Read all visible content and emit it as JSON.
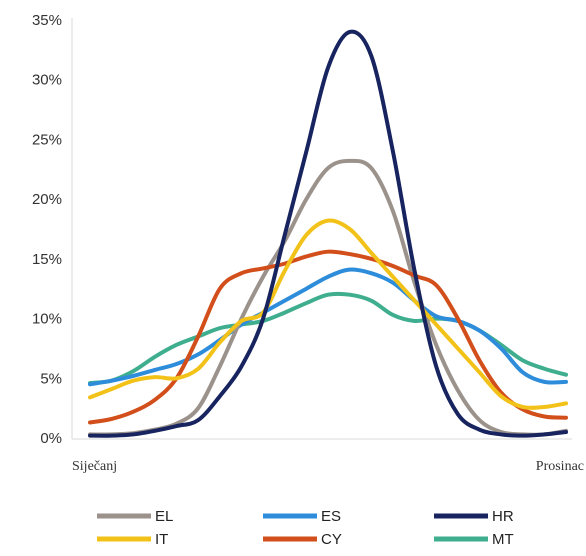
{
  "chart_data": {
    "type": "line",
    "title": "",
    "xlabel": "",
    "ylabel": "",
    "x_tick_labels": [
      "Siječanj",
      "Prosinac"
    ],
    "y_ticks": [
      "0%",
      "5%",
      "10%",
      "15%",
      "20%",
      "25%",
      "30%",
      "35%"
    ],
    "ylim": [
      0,
      35
    ],
    "grid": false,
    "legend_position": "bottom",
    "x": [
      0,
      0.5,
      1,
      1.5,
      2,
      2.5,
      3,
      3.5,
      4,
      4.5,
      5,
      5.5,
      6,
      6.5,
      7,
      7.5,
      8,
      8.5,
      9,
      9.5,
      10,
      10.5,
      11
    ],
    "series": [
      {
        "name": "EL",
        "color": "#9b928c",
        "values": [
          0.3,
          0.3,
          0.4,
          0.7,
          1.2,
          2.5,
          6.0,
          10.0,
          13.5,
          16.5,
          20.0,
          22.6,
          23.2,
          22.6,
          19.0,
          13.0,
          7.8,
          4.0,
          1.5,
          0.5,
          0.3,
          0.3,
          0.6
        ]
      },
      {
        "name": "ES",
        "color": "#2e8ddb",
        "values": [
          4.5,
          4.8,
          5.2,
          5.7,
          6.2,
          7.0,
          8.2,
          9.5,
          10.5,
          11.5,
          12.5,
          13.5,
          14.1,
          13.8,
          13.0,
          11.5,
          10.2,
          9.8,
          9.0,
          7.5,
          5.5,
          4.7,
          4.7
        ]
      },
      {
        "name": "HR",
        "color": "#17245f",
        "values": [
          0.2,
          0.2,
          0.3,
          0.6,
          1.0,
          1.5,
          3.5,
          6.0,
          10.0,
          17.0,
          24.0,
          31.0,
          34.0,
          32.0,
          24.0,
          14.0,
          6.0,
          2.0,
          0.7,
          0.3,
          0.2,
          0.3,
          0.5
        ]
      },
      {
        "name": "IT",
        "color": "#f2c219",
        "values": [
          3.4,
          4.1,
          4.8,
          5.1,
          5.0,
          5.8,
          8.0,
          9.8,
          10.5,
          14.0,
          17.0,
          18.2,
          17.5,
          15.5,
          13.5,
          11.5,
          9.5,
          7.5,
          5.5,
          3.5,
          2.6,
          2.6,
          2.9
        ]
      },
      {
        "name": "CY",
        "color": "#d24e1a",
        "values": [
          1.3,
          1.6,
          2.2,
          3.2,
          5.0,
          8.5,
          12.5,
          13.8,
          14.2,
          14.6,
          15.2,
          15.6,
          15.4,
          15.0,
          14.4,
          13.6,
          12.8,
          10.0,
          6.5,
          3.8,
          2.4,
          1.8,
          1.7
        ]
      },
      {
        "name": "MT",
        "color": "#3fae8e",
        "values": [
          4.6,
          4.8,
          5.6,
          6.8,
          7.8,
          8.5,
          9.2,
          9.5,
          9.8,
          10.5,
          11.3,
          12.0,
          12.0,
          11.5,
          10.3,
          9.8,
          10.0,
          9.8,
          9.0,
          7.8,
          6.5,
          5.8,
          5.3
        ]
      }
    ]
  }
}
